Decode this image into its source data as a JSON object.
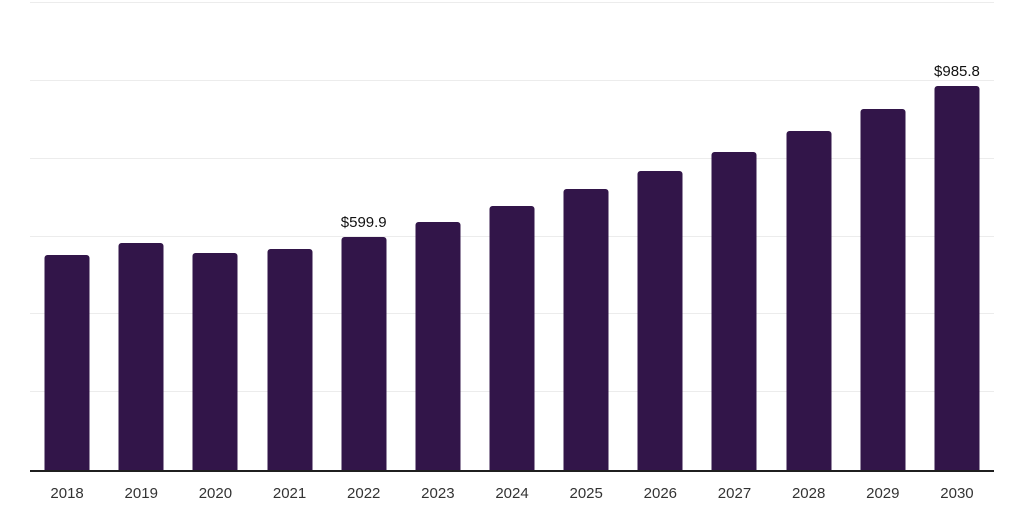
{
  "chart_data": {
    "type": "bar",
    "title": "",
    "xlabel": "",
    "ylabel": "",
    "categories": [
      "2018",
      "2019",
      "2020",
      "2021",
      "2022",
      "2023",
      "2024",
      "2025",
      "2026",
      "2027",
      "2028",
      "2029",
      "2030"
    ],
    "values": [
      553.2,
      584.1,
      556.8,
      567.9,
      599.9,
      638.3,
      679.2,
      722.7,
      769.0,
      818.3,
      870.7,
      926.5,
      985.8
    ],
    "data_labels": [
      "",
      "",
      "",
      "",
      "$599.9",
      "",
      "",
      "",
      "",
      "",
      "",
      "",
      "$985.8"
    ],
    "ylim": [
      0,
      1200
    ],
    "gridline_step": 200,
    "grid": true,
    "legend": "none",
    "colors": {
      "bar": "#321549",
      "gridline": "#ECECEC",
      "axis_line": "#1F1F1F",
      "tick_label": "#333333",
      "data_label": "#111111",
      "background": "#FFFFFF"
    }
  }
}
